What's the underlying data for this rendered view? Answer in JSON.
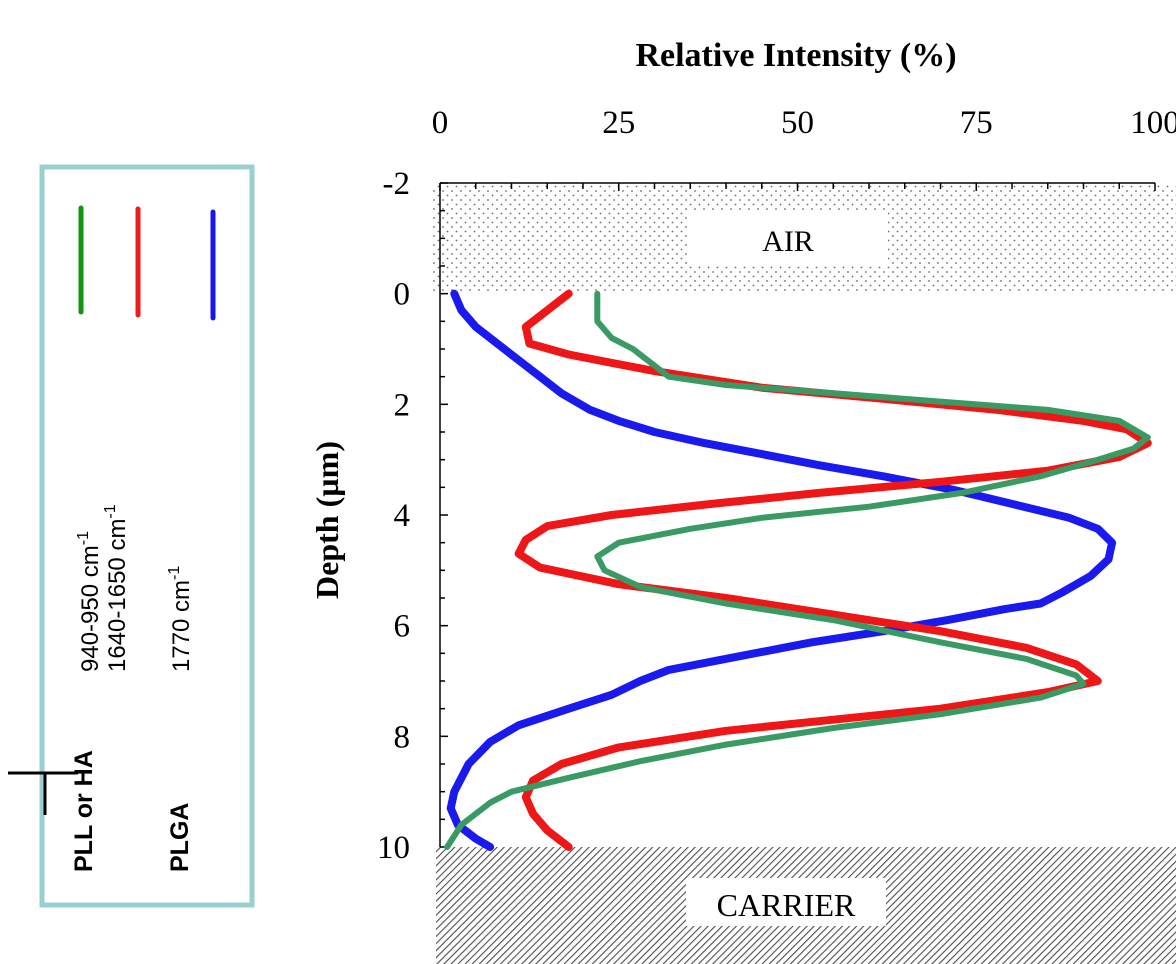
{
  "chart_data": {
    "type": "line",
    "title": "Relative Intensity (%)",
    "xlabel": "Relative Intensity (%)",
    "ylabel": "Depth (µm)",
    "xlim": [
      0,
      100
    ],
    "ylim": [
      -2,
      10
    ],
    "x_ticks": [
      0,
      25,
      50,
      75,
      100
    ],
    "x_tick_labels": [
      "0",
      "25",
      "50",
      "75",
      "100"
    ],
    "y_ticks": [
      -2,
      0,
      2,
      4,
      6,
      8,
      10
    ],
    "y_tick_labels": [
      "-2",
      "0",
      "2",
      "4",
      "6",
      "8",
      "10"
    ],
    "regions": {
      "air_label": "AIR",
      "carrier_label": "CARRIER"
    },
    "legend": {
      "placement": "left",
      "entries": [
        {
          "group": "PLL or HA",
          "range": "940-950 cm",
          "color": "#129412"
        },
        {
          "group": "",
          "range": "1640-1650 cm",
          "color": "#ee1c1c"
        },
        {
          "group": "PLGA",
          "range": "1770 cm",
          "color": "#1717ec"
        }
      ],
      "superscript": "-1"
    },
    "series": [
      {
        "color": "#1a1aee",
        "points": [
          [
            2,
            0
          ],
          [
            3,
            0.3
          ],
          [
            5,
            0.6
          ],
          [
            8,
            0.9
          ],
          [
            11,
            1.2
          ],
          [
            14,
            1.5
          ],
          [
            17,
            1.8
          ],
          [
            21,
            2.1
          ],
          [
            25,
            2.3
          ],
          [
            30,
            2.5
          ],
          [
            37,
            2.7
          ],
          [
            45,
            2.9
          ],
          [
            53,
            3.1
          ],
          [
            62,
            3.3
          ],
          [
            72,
            3.55
          ],
          [
            80,
            3.8
          ],
          [
            88,
            4.05
          ],
          [
            92,
            4.25
          ],
          [
            94,
            4.5
          ],
          [
            93.5,
            4.8
          ],
          [
            91,
            5.1
          ],
          [
            87,
            5.4
          ],
          [
            84,
            5.6
          ],
          [
            79,
            5.7
          ],
          [
            71,
            5.9
          ],
          [
            62,
            6.1
          ],
          [
            52,
            6.3
          ],
          [
            42,
            6.55
          ],
          [
            32,
            6.8
          ],
          [
            28,
            7.0
          ],
          [
            24,
            7.25
          ],
          [
            18,
            7.5
          ],
          [
            11,
            7.8
          ],
          [
            7,
            8.1
          ],
          [
            4,
            8.5
          ],
          [
            2,
            9.0
          ],
          [
            1.5,
            9.3
          ],
          [
            2.5,
            9.6
          ],
          [
            5,
            9.85
          ],
          [
            7,
            10.0
          ]
        ]
      },
      {
        "color": "#ee1616",
        "points": [
          [
            18,
            0
          ],
          [
            15,
            0.3
          ],
          [
            12,
            0.6
          ],
          [
            12.5,
            0.9
          ],
          [
            18,
            1.1
          ],
          [
            30,
            1.4
          ],
          [
            45,
            1.7
          ],
          [
            62,
            1.9
          ],
          [
            78,
            2.1
          ],
          [
            90,
            2.3
          ],
          [
            96,
            2.45
          ],
          [
            99,
            2.7
          ],
          [
            95,
            2.95
          ],
          [
            85,
            3.2
          ],
          [
            70,
            3.4
          ],
          [
            53,
            3.6
          ],
          [
            38,
            3.8
          ],
          [
            24,
            4.0
          ],
          [
            15,
            4.2
          ],
          [
            12,
            4.45
          ],
          [
            11,
            4.7
          ],
          [
            14,
            4.95
          ],
          [
            25,
            5.25
          ],
          [
            40,
            5.5
          ],
          [
            55,
            5.8
          ],
          [
            70,
            6.1
          ],
          [
            82,
            6.4
          ],
          [
            89,
            6.7
          ],
          [
            91,
            6.9
          ],
          [
            92,
            7.0
          ],
          [
            85,
            7.2
          ],
          [
            70,
            7.5
          ],
          [
            55,
            7.7
          ],
          [
            40,
            7.9
          ],
          [
            25,
            8.2
          ],
          [
            17,
            8.5
          ],
          [
            13,
            8.8
          ],
          [
            12,
            9.1
          ],
          [
            13,
            9.4
          ],
          [
            15,
            9.7
          ],
          [
            18,
            10.0
          ]
        ]
      },
      {
        "color": "#3a9a64",
        "points": [
          [
            22,
            0
          ],
          [
            22,
            0.5
          ],
          [
            24,
            0.8
          ],
          [
            27,
            1.0
          ],
          [
            30,
            1.3
          ],
          [
            32,
            1.5
          ],
          [
            40,
            1.65
          ],
          [
            55,
            1.8
          ],
          [
            70,
            1.95
          ],
          [
            85,
            2.1
          ],
          [
            95,
            2.3
          ],
          [
            99,
            2.6
          ],
          [
            97,
            2.8
          ],
          [
            92,
            3.0
          ],
          [
            84,
            3.3
          ],
          [
            73,
            3.6
          ],
          [
            60,
            3.85
          ],
          [
            45,
            4.05
          ],
          [
            35,
            4.25
          ],
          [
            25,
            4.5
          ],
          [
            22,
            4.75
          ],
          [
            23,
            5.0
          ],
          [
            28,
            5.3
          ],
          [
            40,
            5.6
          ],
          [
            55,
            5.9
          ],
          [
            70,
            6.3
          ],
          [
            82,
            6.6
          ],
          [
            89,
            6.9
          ],
          [
            90,
            7.05
          ],
          [
            84,
            7.3
          ],
          [
            70,
            7.6
          ],
          [
            55,
            7.85
          ],
          [
            40,
            8.15
          ],
          [
            28,
            8.45
          ],
          [
            18,
            8.75
          ],
          [
            10,
            9.0
          ],
          [
            7,
            9.2
          ],
          [
            5,
            9.4
          ],
          [
            3,
            9.6
          ],
          [
            2,
            9.8
          ],
          [
            1,
            10.0
          ]
        ]
      }
    ]
  }
}
